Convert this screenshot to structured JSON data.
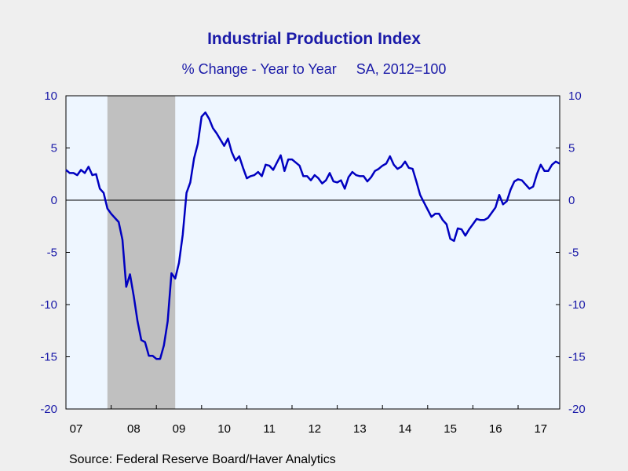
{
  "chart_data": {
    "type": "line",
    "title": "Industrial Production Index",
    "subtitle": "% Change - Year to Year     SA, 2012=100",
    "source": "Source:  Federal Reserve Board/Haver Analytics",
    "ylim": [
      -20,
      10
    ],
    "y_ticks": [
      10,
      5,
      0,
      -5,
      -10,
      -15,
      -20
    ],
    "x_ticks": [
      "07",
      "08",
      "09",
      "10",
      "11",
      "12",
      "13",
      "14",
      "15",
      "16",
      "17"
    ],
    "xlim": [
      2007.0,
      2017.92
    ],
    "grid": false,
    "recession_shading": [
      [
        2007.917,
        2009.417
      ]
    ],
    "line_color": "#0000c0",
    "recession_color": "#c0c0c0",
    "plot_bg": "#eef6ff",
    "series": [
      {
        "x": [
          2007.0,
          2007.083,
          2007.167,
          2007.25,
          2007.333,
          2007.417,
          2007.5,
          2007.583,
          2007.667,
          2007.75,
          2007.833,
          2007.917,
          2008.0,
          2008.083,
          2008.167,
          2008.25,
          2008.333,
          2008.417,
          2008.5,
          2008.583,
          2008.667,
          2008.75,
          2008.833,
          2008.917,
          2009.0,
          2009.083,
          2009.167,
          2009.25,
          2009.333,
          2009.417,
          2009.5,
          2009.583,
          2009.667,
          2009.75,
          2009.833,
          2009.917,
          2010.0,
          2010.083,
          2010.167,
          2010.25,
          2010.333,
          2010.417,
          2010.5,
          2010.583,
          2010.667,
          2010.75,
          2010.833,
          2010.917,
          2011.0,
          2011.083,
          2011.167,
          2011.25,
          2011.333,
          2011.417,
          2011.5,
          2011.583,
          2011.667,
          2011.75,
          2011.833,
          2011.917,
          2012.0,
          2012.083,
          2012.167,
          2012.25,
          2012.333,
          2012.417,
          2012.5,
          2012.583,
          2012.667,
          2012.75,
          2012.833,
          2012.917,
          2013.0,
          2013.083,
          2013.167,
          2013.25,
          2013.333,
          2013.417,
          2013.5,
          2013.583,
          2013.667,
          2013.75,
          2013.833,
          2013.917,
          2014.0,
          2014.083,
          2014.167,
          2014.25,
          2014.333,
          2014.417,
          2014.5,
          2014.583,
          2014.667,
          2014.75,
          2014.833,
          2014.917,
          2015.0,
          2015.083,
          2015.167,
          2015.25,
          2015.333,
          2015.417,
          2015.5,
          2015.583,
          2015.667,
          2015.75,
          2015.833,
          2015.917,
          2016.0,
          2016.083,
          2016.167,
          2016.25,
          2016.333,
          2016.417,
          2016.5,
          2016.583,
          2016.667,
          2016.75,
          2016.833,
          2016.917,
          2017.0,
          2017.083,
          2017.167,
          2017.25,
          2017.333,
          2017.417,
          2017.5,
          2017.583,
          2017.667,
          2017.75,
          2017.833,
          2017.917
        ],
        "y": [
          2.9,
          2.6,
          2.6,
          2.4,
          2.9,
          2.6,
          3.2,
          2.4,
          2.5,
          1.1,
          0.7,
          -0.8,
          -1.3,
          -1.7,
          -2.1,
          -3.8,
          -8.3,
          -7.1,
          -9.2,
          -11.6,
          -13.4,
          -13.6,
          -14.9,
          -14.9,
          -15.2,
          -15.2,
          -13.9,
          -11.6,
          -7.0,
          -7.5,
          -6.0,
          -3.3,
          0.7,
          1.7,
          4.0,
          5.4,
          8.0,
          8.4,
          7.8,
          6.9,
          6.4,
          5.8,
          5.2,
          5.9,
          4.6,
          3.8,
          4.2,
          3.1,
          2.1,
          2.3,
          2.4,
          2.7,
          2.3,
          3.4,
          3.3,
          2.9,
          3.6,
          4.3,
          2.8,
          3.9,
          3.9,
          3.6,
          3.3,
          2.3,
          2.3,
          1.9,
          2.4,
          2.1,
          1.6,
          1.9,
          2.6,
          1.8,
          1.7,
          1.9,
          1.1,
          2.2,
          2.7,
          2.4,
          2.3,
          2.3,
          1.8,
          2.2,
          2.8,
          3.0,
          3.3,
          3.5,
          4.2,
          3.4,
          3.0,
          3.2,
          3.7,
          3.1,
          3.0,
          1.8,
          0.5,
          -0.2,
          -0.9,
          -1.6,
          -1.3,
          -1.3,
          -1.9,
          -2.3,
          -3.7,
          -3.9,
          -2.7,
          -2.8,
          -3.4,
          -2.8,
          -2.3,
          -1.8,
          -1.9,
          -1.9,
          -1.7,
          -1.2,
          -0.7,
          0.5,
          -0.4,
          -0.1,
          1.0,
          1.8,
          2.0,
          1.9,
          1.5,
          1.1,
          1.3,
          2.5,
          3.4,
          2.8,
          2.8,
          3.4,
          3.7,
          3.5
        ]
      }
    ]
  }
}
